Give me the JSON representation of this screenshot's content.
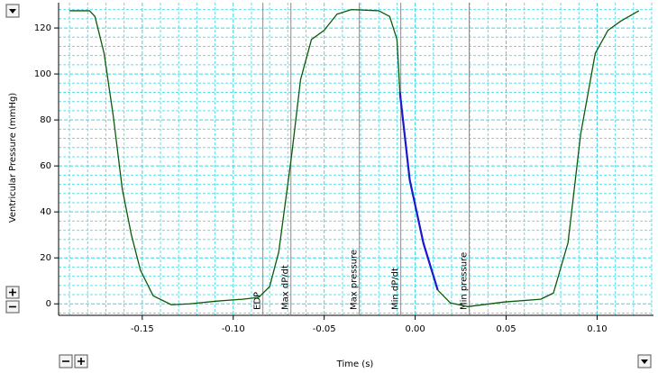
{
  "chart_data": {
    "type": "line",
    "x_label": "Time (s)",
    "y_label": "Ventricular Pressure (mmHg)",
    "x": [
      -0.19,
      -0.179,
      -0.176,
      -0.171,
      -0.166,
      -0.161,
      -0.156,
      -0.151,
      -0.144,
      -0.134,
      -0.124,
      -0.109,
      -0.095,
      -0.086,
      -0.08,
      -0.075,
      -0.068,
      -0.063,
      -0.057,
      -0.05,
      -0.043,
      -0.035,
      -0.02,
      -0.014,
      -0.01,
      -0.0084,
      -0.003,
      0.0045,
      0.0124,
      0.0193,
      0.029,
      0.049,
      0.069,
      0.076,
      0.084,
      0.091,
      0.099,
      0.106,
      0.113,
      0.123
    ],
    "series": [
      {
        "color": "#0a5a0a",
        "values": [
          127.5,
          127.5,
          125,
          109,
          82,
          50,
          30,
          14.6,
          3.5,
          -0.4,
          0,
          1.2,
          2,
          2.8,
          7.5,
          22.5,
          64,
          97.5,
          115,
          119,
          126,
          128,
          127.5,
          125,
          115,
          92,
          null,
          null,
          6,
          0.4,
          -1.2,
          0.8,
          2,
          4.7,
          26.5,
          74,
          109,
          119,
          123,
          127.5
        ]
      },
      {
        "color": "#1a1acc",
        "values": [
          null,
          null,
          null,
          null,
          null,
          null,
          null,
          null,
          null,
          null,
          null,
          null,
          null,
          null,
          null,
          null,
          null,
          null,
          null,
          null,
          null,
          null,
          null,
          null,
          null,
          92,
          54,
          26.5,
          6,
          null,
          null,
          null,
          null,
          null,
          null,
          null,
          null,
          null,
          null,
          null
        ]
      }
    ],
    "markers": [
      {
        "x": -0.0837,
        "label": "EDP"
      },
      {
        "x": -0.0683,
        "label": "Max dP/dt"
      },
      {
        "x": -0.0307,
        "label": "Max pressure"
      },
      {
        "x": -0.0079,
        "label": "Min dP/dt"
      },
      {
        "x": 0.0297,
        "label": "Min pressure"
      }
    ],
    "xlim": [
      -0.196,
      0.131
    ],
    "ylim": [
      -5,
      131
    ],
    "xticks": [
      -0.15,
      {
        "value": -0.1,
        "label": "-0.10"
      },
      -0.05,
      {
        "value": 0,
        "label": "0.00"
      },
      0.05,
      {
        "value": 0.1,
        "label": "0.10"
      }
    ],
    "yticks": [
      0,
      20,
      40,
      60,
      80,
      100,
      120
    ],
    "xminorticks": [
      -0.19,
      -0.18,
      -0.17,
      -0.16,
      -0.14,
      -0.13,
      -0.12,
      -0.11,
      -0.09,
      -0.08,
      -0.07,
      -0.06,
      -0.04,
      -0.03,
      -0.02,
      -0.01,
      0.01,
      0.02,
      0.03,
      0.04,
      0.06,
      0.07,
      0.08,
      0.09,
      0.11,
      0.12,
      0.13
    ],
    "yminorticks": [
      -4,
      4,
      8,
      12,
      16,
      24,
      28,
      32,
      36,
      44,
      48,
      52,
      56,
      64,
      68,
      72,
      76,
      84,
      88,
      92,
      96,
      104,
      108,
      112,
      116,
      124,
      128
    ],
    "grid": true
  }
}
